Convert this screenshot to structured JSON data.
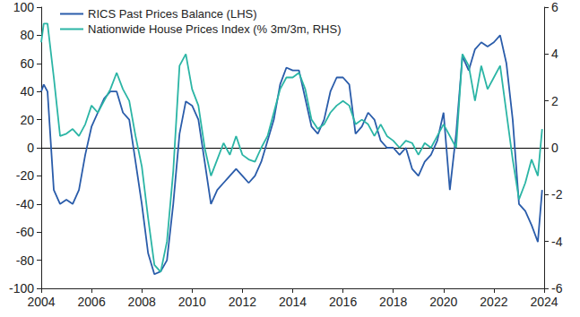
{
  "chart_data": {
    "type": "line",
    "x": [
      2004.0,
      2004.1,
      2004.25,
      2004.5,
      2004.75,
      2005.0,
      2005.25,
      2005.5,
      2005.75,
      2006.0,
      2006.25,
      2006.5,
      2006.75,
      2007.0,
      2007.25,
      2007.5,
      2007.75,
      2008.0,
      2008.25,
      2008.5,
      2008.75,
      2009.0,
      2009.25,
      2009.5,
      2009.75,
      2010.0,
      2010.25,
      2010.5,
      2010.75,
      2011.0,
      2011.25,
      2011.5,
      2011.75,
      2012.0,
      2012.25,
      2012.5,
      2012.75,
      2013.0,
      2013.25,
      2013.5,
      2013.75,
      2014.0,
      2014.25,
      2014.5,
      2014.75,
      2015.0,
      2015.25,
      2015.5,
      2015.75,
      2016.0,
      2016.25,
      2016.5,
      2016.75,
      2017.0,
      2017.25,
      2017.5,
      2017.75,
      2018.0,
      2018.25,
      2018.5,
      2018.75,
      2019.0,
      2019.25,
      2019.5,
      2019.75,
      2020.0,
      2020.25,
      2020.5,
      2020.75,
      2021.0,
      2021.25,
      2021.5,
      2021.75,
      2022.0,
      2022.25,
      2022.5,
      2022.75,
      2023.0,
      2023.25,
      2023.5,
      2023.75,
      2023.92
    ],
    "series": [
      {
        "name": "RICS Past Prices Balance (LHS)",
        "color": "#2a5caa",
        "values": [
          40,
          45,
          40,
          -30,
          -40,
          -37,
          -40,
          -30,
          -5,
          15,
          25,
          35,
          40,
          40,
          25,
          20,
          -10,
          -40,
          -75,
          -90,
          -88,
          -80,
          -40,
          10,
          33,
          30,
          20,
          -10,
          -40,
          -30,
          -25,
          -20,
          -15,
          -20,
          -25,
          -20,
          -10,
          5,
          20,
          45,
          57,
          55,
          55,
          35,
          15,
          10,
          20,
          40,
          50,
          50,
          45,
          10,
          15,
          25,
          20,
          5,
          0,
          0,
          -5,
          0,
          -15,
          -20,
          -10,
          -5,
          5,
          25,
          -30,
          10,
          65,
          55,
          70,
          75,
          72,
          75,
          80,
          60,
          20,
          -40,
          -45,
          -55,
          -67,
          -30
        ]
      },
      {
        "name": "Nationwide House Prices Index (% 3m/3m, RHS)",
        "color": "#2bb5a5",
        "axis": "y2",
        "values": [
          4.5,
          5.3,
          5.3,
          3,
          0.5,
          0.6,
          0.8,
          0.5,
          1,
          1.8,
          1.5,
          2.0,
          2.5,
          3.2,
          2.5,
          2.0,
          0.5,
          -0.8,
          -3,
          -5,
          -5.3,
          -4,
          -1,
          3.5,
          4,
          2.5,
          1.8,
          0,
          -1.2,
          -0.5,
          0.2,
          -0.3,
          0.5,
          -0.3,
          -0.5,
          -0.6,
          0,
          0.5,
          1.5,
          2.5,
          3,
          3,
          3.2,
          2.5,
          1.2,
          0.8,
          1.0,
          1.5,
          1.8,
          2.0,
          1.8,
          1.0,
          1.2,
          1.0,
          0.5,
          1.0,
          0.5,
          0.3,
          0,
          0.3,
          0.2,
          -0.3,
          0.2,
          0,
          0.5,
          1.0,
          0.5,
          0,
          4,
          3.5,
          2,
          3.5,
          2.5,
          3,
          3.5,
          1.5,
          -0.5,
          -2.2,
          -1.5,
          -0.5,
          -1.2,
          0.8
        ]
      }
    ],
    "xlim": [
      2004,
      2024
    ],
    "xticks": [
      2004,
      2006,
      2008,
      2010,
      2012,
      2014,
      2016,
      2018,
      2020,
      2022,
      2024
    ],
    "ylim": [
      -100,
      100
    ],
    "yticks": [
      -100,
      -80,
      -60,
      -40,
      -20,
      0,
      20,
      40,
      60,
      80,
      100
    ],
    "y2lim": [
      -6,
      6
    ],
    "y2ticks": [
      -6,
      -4,
      -2,
      0,
      2,
      4,
      6
    ],
    "grid": false,
    "legend": "top-left"
  }
}
